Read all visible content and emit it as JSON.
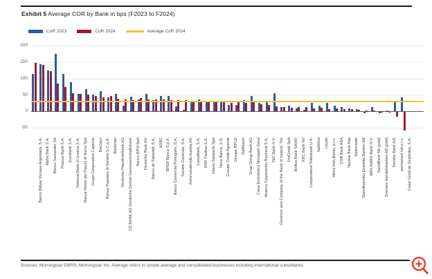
{
  "header": {
    "exhibit_label": "Exhibit 5",
    "title": "Average COR by Bank in bps (F2023 to F2024)"
  },
  "legend": [
    {
      "label": "CoR 2023",
      "color": "#2b5a9b",
      "type": "bar"
    },
    {
      "label": "CoR 2024",
      "color": "#9c1b33",
      "type": "bar"
    },
    {
      "label": "Average CoR 2024",
      "color": "#f1c232",
      "type": "line"
    }
  ],
  "footer": {
    "sources": "Sources: Morningstar DBRS, Morningstar Inc. Average refers to simple average and consolidated businesses including international subsidiaries."
  },
  "icons": {
    "zoom_in": "magnifier-plus-icon",
    "zoom_color": "#e8432d"
  },
  "colors": {
    "cor_2023": "#2b5a9b",
    "cor_2024": "#9c1b33",
    "average_line": "#f1c232",
    "gridline": "#e7e7e7",
    "zero_axis": "#555555"
  },
  "chart_data": {
    "type": "bar",
    "title": "Average COR by Bank in bps (F2023 to F2024)",
    "xlabel": "",
    "ylabel": "",
    "ylim": [
      -72,
      212
    ],
    "yticks": [
      200,
      150,
      100,
      50,
      0,
      -50
    ],
    "grid": true,
    "legend_position": "top-left",
    "average_line_2024": 30,
    "categories": [
      "Banco Bilbao Vizcaya Argentaria, S.A.",
      "Alpha Bank S.A.",
      "Banco Santander SA",
      "Piraeus Bank S.A.",
      "Eurobank S.A.",
      "National Bank of Greece S.A.",
      "Banca Monte dei Paschi di Siena SpA",
      "Grupo Cooperativo Cajamar",
      "Barclays",
      "Banca Popolare di Sondrio S.C.p.A.",
      "Bankinter",
      "Deutsche Pfandbriefbank AG",
      "DZ BANK AG Deutsche Zentral-Genossenschaftsbank",
      "Banco BPM SpA",
      "Deutsche Bank AG",
      "Banco de Sabadell, S.A.",
      "HSBC",
      "BPER Banca S.p.A.",
      "Banco Comercial Português, S.A.",
      "Société Générale, S.A.",
      "Kommunalkredit Austria AG",
      "CaixaBank, S.A.",
      "BNP Paribas S.A.",
      "Intesa Sanpaolo SpA",
      "Novo Banco, S.A.",
      "Groupe Crédit Agricole",
      "Groupe BPCE",
      "Raiffeisen",
      "Erste Group Bank AG",
      "Caixa Económica Montepio Geral",
      "Abanca Corporación Bancaria S.A.",
      "ING Bank N.V.",
      "Governor and Company of the Bank of Ireland, The",
      "UniCredit SpA",
      "Belfius Bank SA/NV",
      "KBC Bank NV",
      "Coöperatieve Rabobank U.A.",
      "NatWest",
      "Lloyds",
      "Allied Irish Banks, p.l.c.",
      "DNB Bank ASA",
      "Nordea Bank Abp",
      "Nationwide",
      "Skandinaviska Enskilda Banken AB",
      "ABN AMRO Bank N.V.",
      "SwedBank AB (publ)",
      "Svenska Handelsbanken AB (publ)",
      "Danske Bank A/S",
      "permanent tsb p.l.c.",
      "Caixa Geral de Depósitos, S.A."
    ],
    "series": [
      {
        "name": "CoR 2023",
        "color": "#2b5a9b",
        "values": [
          115,
          143,
          125,
          176,
          113,
          88,
          53,
          67,
          50,
          62,
          43,
          53,
          18,
          44,
          36,
          53,
          34,
          46,
          46,
          14,
          5,
          28,
          37,
          32,
          30,
          27,
          20,
          20,
          33,
          47,
          25,
          30,
          56,
          13,
          16,
          8,
          4,
          25,
          18,
          26,
          18,
          12,
          8,
          6,
          -5,
          12,
          -4,
          2,
          28,
          42
        ]
      },
      {
        "name": "CoR 2024",
        "color": "#9c1b33",
        "values": [
          148,
          142,
          122,
          85,
          74,
          55,
          53,
          50,
          46,
          42,
          46,
          39,
          37,
          34,
          41,
          37,
          36,
          35,
          34,
          33,
          33,
          31,
          29,
          29,
          28,
          27,
          26,
          28,
          26,
          27,
          22,
          20,
          15,
          13,
          10,
          12,
          13,
          8,
          10,
          7,
          8,
          6,
          6,
          5,
          3,
          2,
          -2,
          -2,
          -14,
          -56
        ]
      }
    ]
  }
}
